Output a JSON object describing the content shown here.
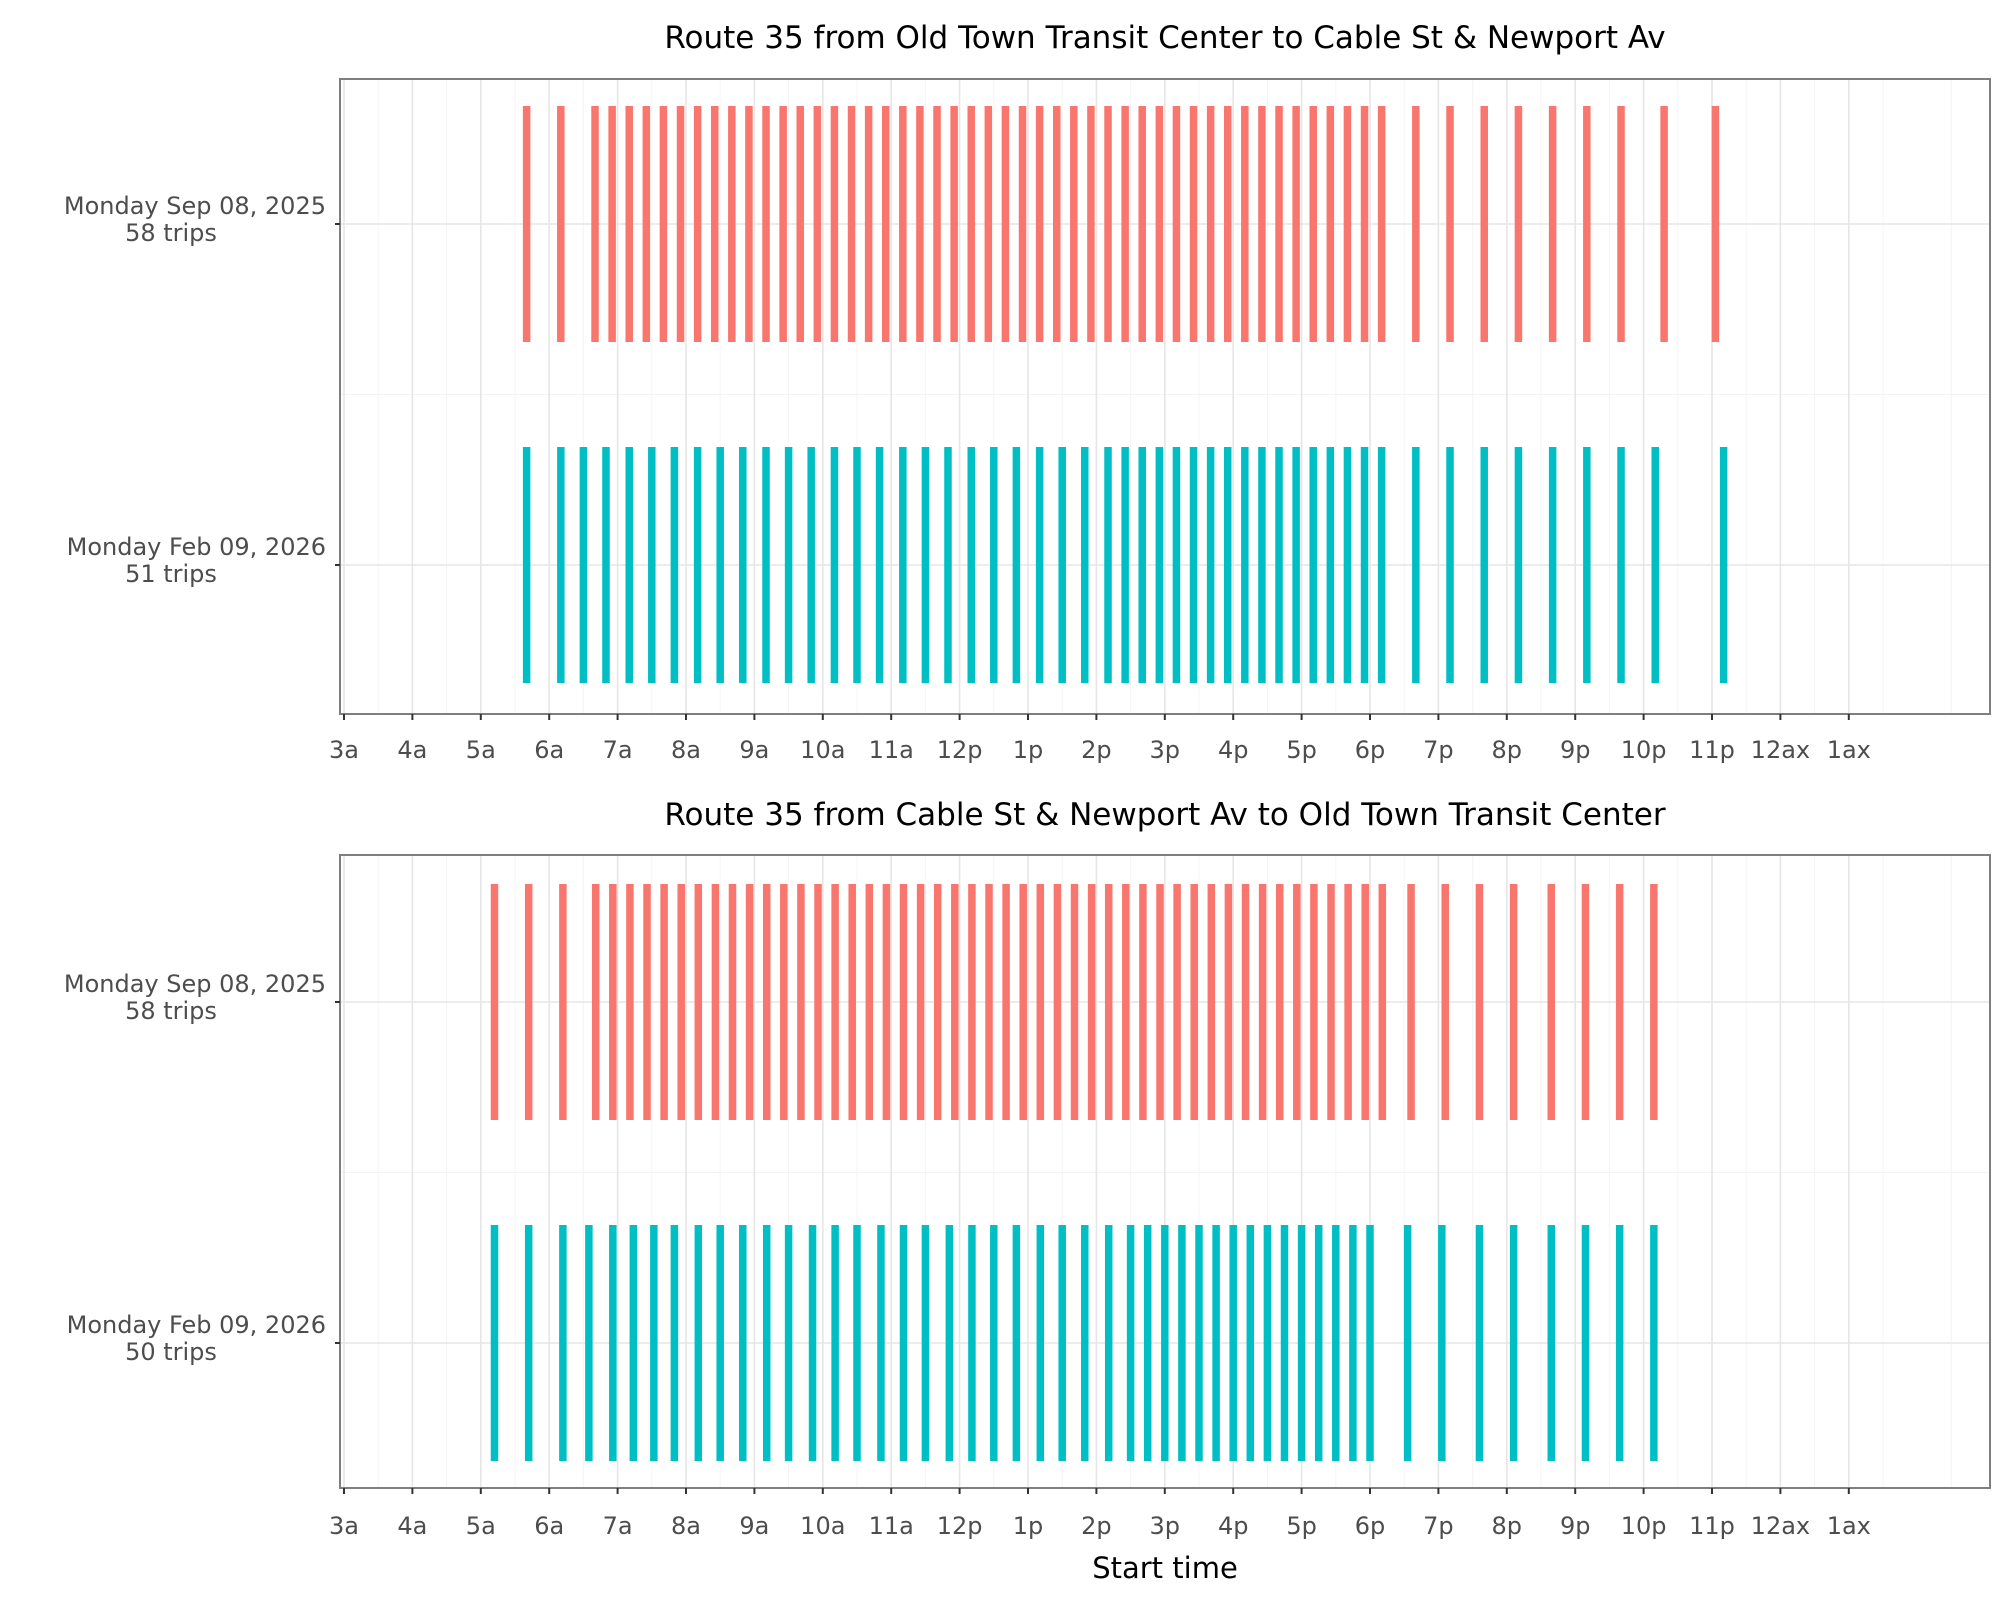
{
  "chart_data": [
    {
      "type": "timeline",
      "title": "Route 35 from Old Town Transit Center to Cable St & Newport Av",
      "xlabel": "",
      "x_unit": "hours after midnight",
      "xlim": [
        3,
        27.2
      ],
      "x_ticks": [
        3,
        4,
        5,
        6,
        7,
        8,
        9,
        10,
        11,
        12,
        13,
        14,
        15,
        16,
        17,
        18,
        19,
        20,
        21,
        22,
        23,
        24,
        25
      ],
      "x_tick_labels": [
        "3a",
        "4a",
        "5a",
        "6a",
        "7a",
        "8a",
        "9a",
        "10a",
        "11a",
        "12p",
        "1p",
        "2p",
        "3p",
        "4p",
        "5p",
        "6p",
        "7p",
        "8p",
        "9p",
        "10p",
        "11p",
        "12ax",
        "1ax"
      ],
      "series": [
        {
          "name": "Monday Sep 08, 2025",
          "label_line1": "Monday Sep 08, 2025",
          "label_line2": "58 trips",
          "color": "#F8766D",
          "start_times": [
            5.67,
            6.17,
            6.67,
            6.92,
            7.17,
            7.42,
            7.67,
            7.92,
            8.17,
            8.42,
            8.67,
            8.92,
            9.17,
            9.42,
            9.67,
            9.92,
            10.17,
            10.42,
            10.67,
            10.92,
            11.17,
            11.42,
            11.67,
            11.92,
            12.17,
            12.42,
            12.67,
            12.92,
            13.17,
            13.42,
            13.67,
            13.92,
            14.17,
            14.42,
            14.67,
            14.92,
            15.17,
            15.42,
            15.67,
            15.92,
            16.17,
            16.42,
            16.67,
            16.92,
            17.17,
            17.42,
            17.67,
            17.92,
            18.17,
            18.67,
            19.17,
            19.67,
            20.17,
            20.67,
            21.17,
            21.67,
            22.3,
            23.05
          ]
        },
        {
          "name": "Monday Feb 09, 2026",
          "label_line1": "Monday Feb 09, 2026",
          "label_line2": "51 trips",
          "color": "#00BFC4",
          "start_times": [
            5.67,
            6.17,
            6.5,
            6.83,
            7.17,
            7.5,
            7.83,
            8.17,
            8.5,
            8.83,
            9.17,
            9.5,
            9.83,
            10.17,
            10.5,
            10.83,
            11.17,
            11.5,
            11.83,
            12.17,
            12.5,
            12.83,
            13.17,
            13.5,
            13.83,
            14.17,
            14.42,
            14.67,
            14.92,
            15.17,
            15.42,
            15.67,
            15.92,
            16.17,
            16.42,
            16.67,
            16.92,
            17.17,
            17.42,
            17.67,
            17.92,
            18.17,
            18.67,
            19.17,
            19.67,
            20.17,
            20.67,
            21.17,
            21.67,
            22.17,
            23.17
          ]
        }
      ]
    },
    {
      "type": "timeline",
      "title": "Route 35 from Cable St & Newport Av to Old Town Transit Center",
      "xlabel": "Start time",
      "x_unit": "hours after midnight",
      "xlim": [
        3,
        27.2
      ],
      "x_ticks": [
        3,
        4,
        5,
        6,
        7,
        8,
        9,
        10,
        11,
        12,
        13,
        14,
        15,
        16,
        17,
        18,
        19,
        20,
        21,
        22,
        23,
        24,
        25
      ],
      "x_tick_labels": [
        "3a",
        "4a",
        "5a",
        "6a",
        "7a",
        "8a",
        "9a",
        "10a",
        "11a",
        "12p",
        "1p",
        "2p",
        "3p",
        "4p",
        "5p",
        "6p",
        "7p",
        "8p",
        "9p",
        "10p",
        "11p",
        "12ax",
        "1ax"
      ],
      "series": [
        {
          "name": "Monday Sep 08, 2025",
          "label_line1": "Monday Sep 08, 2025",
          "label_line2": "58 trips",
          "color": "#F8766D",
          "start_times": [
            5.2,
            5.7,
            6.2,
            6.68,
            6.93,
            7.18,
            7.43,
            7.68,
            7.93,
            8.18,
            8.43,
            8.68,
            8.93,
            9.18,
            9.43,
            9.68,
            9.93,
            10.18,
            10.43,
            10.68,
            10.93,
            11.18,
            11.43,
            11.68,
            11.93,
            12.18,
            12.43,
            12.68,
            12.93,
            13.18,
            13.43,
            13.68,
            13.93,
            14.18,
            14.43,
            14.68,
            14.93,
            15.18,
            15.43,
            15.68,
            15.93,
            16.18,
            16.43,
            16.68,
            16.93,
            17.18,
            17.43,
            17.68,
            17.93,
            18.18,
            18.6,
            19.1,
            19.6,
            20.1,
            20.65,
            21.15,
            21.65,
            22.15
          ]
        },
        {
          "name": "Monday Feb 09, 2026",
          "label_line1": "Monday Feb 09, 2026",
          "label_line2": "50 trips",
          "color": "#00BFC4",
          "start_times": [
            5.2,
            5.7,
            6.2,
            6.58,
            6.93,
            7.23,
            7.53,
            7.83,
            8.18,
            8.5,
            8.83,
            9.18,
            9.5,
            9.85,
            10.18,
            10.5,
            10.85,
            11.18,
            11.5,
            11.85,
            12.18,
            12.5,
            12.83,
            13.18,
            13.5,
            13.83,
            14.18,
            14.5,
            14.75,
            15.0,
            15.25,
            15.5,
            15.75,
            16.0,
            16.25,
            16.5,
            16.75,
            17.0,
            17.25,
            17.5,
            17.75,
            18.0,
            18.55,
            19.05,
            19.6,
            20.1,
            20.65,
            21.15,
            21.65,
            22.15
          ]
        }
      ]
    }
  ]
}
